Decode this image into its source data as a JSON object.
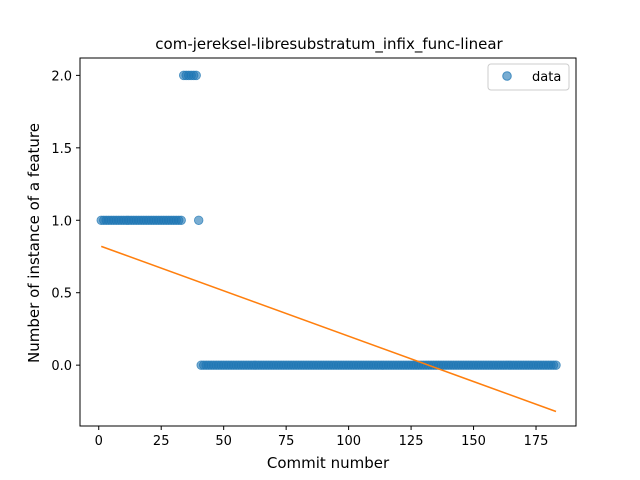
{
  "chart_data": {
    "type": "scatter",
    "title": "com-jereksel-libresubstratum_infix_func-linear",
    "xlabel": "Commit number",
    "ylabel": "Number of instance of a feature",
    "xlim": [
      -7.5,
      191.0
    ],
    "ylim": [
      -0.42,
      2.12
    ],
    "xticks": [
      0,
      25,
      50,
      75,
      100,
      125,
      150,
      175
    ],
    "xtick_labels": [
      "0",
      "25",
      "50",
      "75",
      "100",
      "125",
      "150",
      "175"
    ],
    "yticks": [
      0.0,
      0.5,
      1.0,
      1.5,
      2.0
    ],
    "ytick_labels": [
      "0.0",
      "0.5",
      "1.0",
      "1.5",
      "2.0"
    ],
    "legend": {
      "placement": "top-right",
      "entries": [
        "data"
      ]
    },
    "colors": {
      "data": "#1f77b4",
      "fit": "#ff7f0e"
    },
    "series": [
      {
        "name": "data",
        "kind": "scatter",
        "segments": [
          {
            "x_start": 1,
            "x_end": 33,
            "y": 1.0
          },
          {
            "x_start": 34,
            "x_end": 39,
            "y": 2.0
          },
          {
            "x_start": 40,
            "x_end": 40,
            "y": 1.0
          },
          {
            "x_start": 41,
            "x_end": 183,
            "y": 0.0
          }
        ]
      },
      {
        "name": "linear fit",
        "kind": "line",
        "x": [
          1,
          183
        ],
        "y": [
          0.82,
          -0.32
        ]
      }
    ]
  }
}
